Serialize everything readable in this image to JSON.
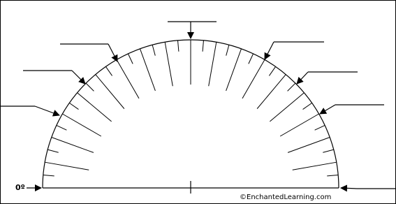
{
  "labels": {
    "zero": "0º"
  },
  "footer": {
    "copyright": "©EnchantedLearning.com"
  }
}
